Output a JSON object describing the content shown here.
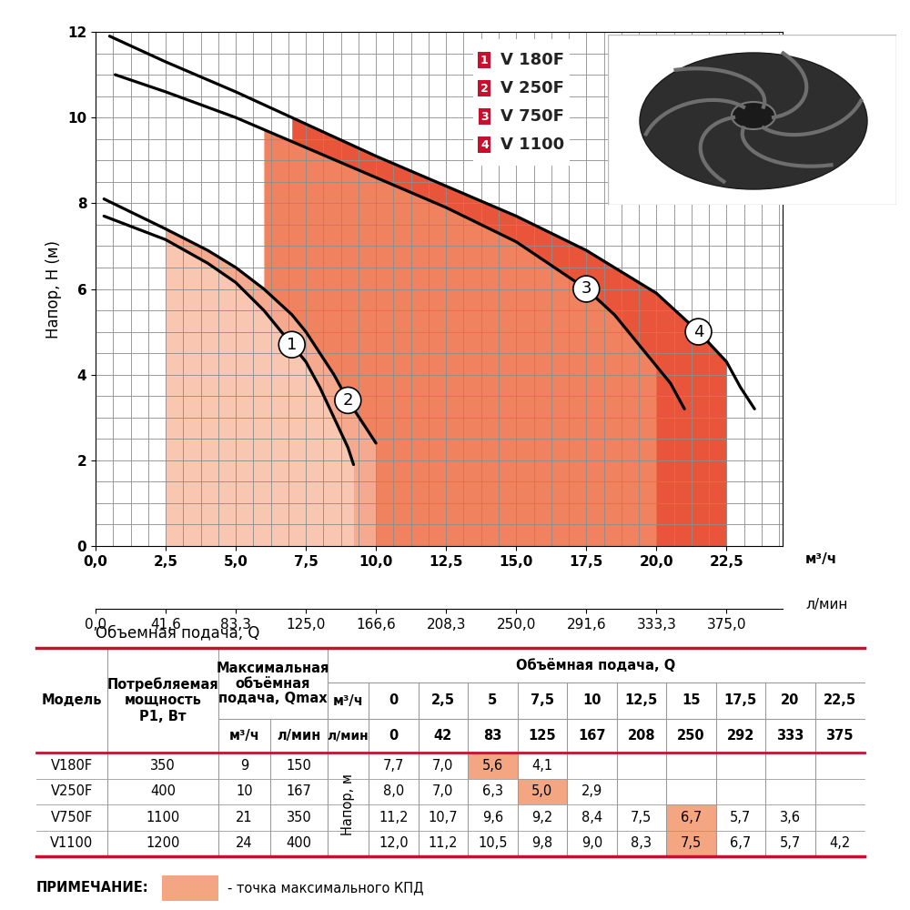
{
  "chart_data": {
    "type": "line",
    "y_label": "Напор, H (м)",
    "x_label": "Объемная подача, Q",
    "x_unit": "м³/ч",
    "x2_unit": "л/мин",
    "xlim": [
      0,
      24.5
    ],
    "ylim": [
      0,
      12
    ],
    "xticks": [
      {
        "value": 0,
        "label": "0,0"
      },
      {
        "value": 2.5,
        "label": "2,5"
      },
      {
        "value": 5,
        "label": "5,0"
      },
      {
        "value": 7.5,
        "label": "7,5"
      },
      {
        "value": 10,
        "label": "10,0"
      },
      {
        "value": 12.5,
        "label": "12,5"
      },
      {
        "value": 15,
        "label": "15,0"
      },
      {
        "value": 17.5,
        "label": "17,5"
      },
      {
        "value": 20,
        "label": "20,0"
      },
      {
        "value": 22.5,
        "label": "22,5"
      }
    ],
    "yticks": [
      0,
      2,
      4,
      6,
      8,
      10,
      12
    ],
    "x2lim": [
      0,
      408.3
    ],
    "x2ticks": [
      {
        "value": 0,
        "label": "0,0"
      },
      {
        "value": 41.6,
        "label": "41,6"
      },
      {
        "value": 83.3,
        "label": "83,3"
      },
      {
        "value": 125,
        "label": "125,0"
      },
      {
        "value": 166.6,
        "label": "166,6"
      },
      {
        "value": 208.3,
        "label": "208,3"
      },
      {
        "value": 250,
        "label": "250,0"
      },
      {
        "value": 291.6,
        "label": "291,6"
      },
      {
        "value": 333.3,
        "label": "333,3"
      },
      {
        "value": 375,
        "label": "375,0"
      }
    ],
    "grid": true,
    "series": [
      {
        "name": "V 180F",
        "number": "1",
        "color": "#f9c6b2",
        "x": [
          0.3,
          2.5,
          4.0,
          5.0,
          6.0,
          7.0,
          7.5,
          8.0,
          8.5,
          9.0,
          9.2
        ],
        "values": [
          7.7,
          7.15,
          6.6,
          6.15,
          5.5,
          4.7,
          4.3,
          3.7,
          3.0,
          2.3,
          1.9
        ],
        "work_range": [
          2.5,
          9.2
        ]
      },
      {
        "name": "V 250F",
        "number": "2",
        "color": "#f5a98f",
        "x": [
          0.3,
          2.5,
          4.0,
          5.0,
          6.0,
          7.0,
          7.5,
          8.0,
          8.5,
          9.0,
          9.5,
          10.0
        ],
        "values": [
          8.1,
          7.4,
          6.9,
          6.5,
          6.0,
          5.4,
          5.0,
          4.5,
          4.0,
          3.4,
          2.9,
          2.4
        ],
        "work_range": [
          2.5,
          10.0
        ]
      },
      {
        "name": "V 750F",
        "number": "3",
        "color": "#f0825f",
        "x": [
          0.7,
          2.5,
          5.0,
          7.5,
          10.0,
          12.5,
          15.0,
          17.5,
          18.5,
          19.5,
          20.5,
          21.0
        ],
        "values": [
          11.0,
          10.6,
          10.0,
          9.3,
          8.6,
          7.9,
          7.1,
          6.0,
          5.4,
          4.6,
          3.8,
          3.2
        ],
        "work_range": [
          6.0,
          20.0
        ]
      },
      {
        "name": "V 1100",
        "number": "4",
        "color": "#e8553a",
        "x": [
          0.5,
          2.5,
          5.0,
          7.5,
          10.0,
          12.5,
          15.0,
          17.5,
          20.0,
          21.5,
          22.5,
          23.0,
          23.5
        ],
        "values": [
          11.9,
          11.3,
          10.6,
          9.85,
          9.1,
          8.4,
          7.7,
          6.9,
          5.9,
          5.0,
          4.3,
          3.7,
          3.2
        ],
        "work_range": [
          7.0,
          22.5
        ]
      }
    ]
  },
  "table": {
    "headers": {
      "model": "Модель",
      "power": "Потребляемая\nмощность\nP1, Вт",
      "qmax": "Максимальная\nобъёмная\nподача, Qmax",
      "qmax_units": [
        "м³/ч",
        "л/мин"
      ],
      "flow": "Объёмная подача, Q",
      "flow_units": [
        "м³/ч",
        "л/мин"
      ],
      "head": "Напор, м"
    },
    "flow_m3h": [
      "0",
      "2,5",
      "5",
      "7,5",
      "10",
      "12,5",
      "15",
      "17,5",
      "20",
      "22,5"
    ],
    "flow_lmin": [
      "0",
      "42",
      "83",
      "125",
      "167",
      "208",
      "250",
      "292",
      "333",
      "375"
    ],
    "rows": [
      {
        "model": "V180F",
        "power": "350",
        "qmax_m3h": "9",
        "qmax_lmin": "150",
        "head": [
          "7,7",
          "7,0",
          "5,6",
          "4,1",
          null,
          null,
          null,
          null,
          null,
          null
        ],
        "max_efficiency": 2
      },
      {
        "model": "V250F",
        "power": "400",
        "qmax_m3h": "10",
        "qmax_lmin": "167",
        "head": [
          "8,0",
          "7,0",
          "6,3",
          "5,0",
          "2,9",
          null,
          null,
          null,
          null,
          null
        ],
        "max_efficiency": 3
      },
      {
        "model": "V750F",
        "power": "1100",
        "qmax_m3h": "21",
        "qmax_lmin": "350",
        "head": [
          "11,2",
          "10,7",
          "9,6",
          "9,2",
          "8,4",
          "7,5",
          "6,7",
          "5,7",
          "3,6",
          null
        ],
        "max_efficiency": 6
      },
      {
        "model": "V1100",
        "power": "1200",
        "qmax_m3h": "24",
        "qmax_lmin": "400",
        "head": [
          "12,0",
          "11,2",
          "10,5",
          "9,8",
          "9,0",
          "8,3",
          "7,5",
          "6,7",
          "5,7",
          "4,2"
        ],
        "max_efficiency": 6
      }
    ]
  },
  "note": {
    "label": "ПРИМЕЧАНИЕ:",
    "text": "- точка максимального КПД",
    "color": "#f4a582"
  }
}
